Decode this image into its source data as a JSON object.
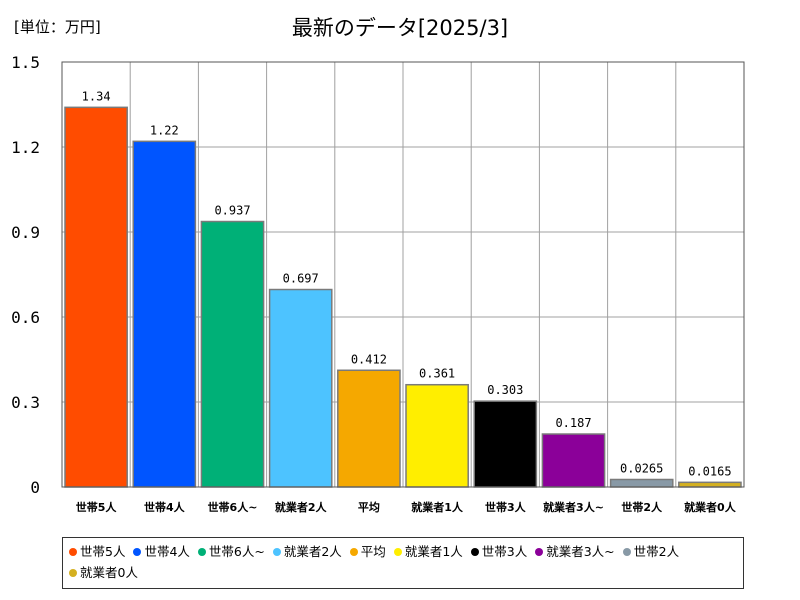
{
  "unit_label": "[単位：万円]",
  "chart_data": {
    "type": "bar",
    "title": "最新のデータ[2025/3]",
    "unit": "[単位：万円]",
    "categories": [
      "世帯5人",
      "世帯4人",
      "世帯6人~",
      "就業者2人",
      "平均",
      "就業者1人",
      "世帯3人",
      "就業者3人~",
      "世帯2人",
      "就業者0人"
    ],
    "values": [
      1.34,
      1.22,
      0.937,
      0.697,
      0.412,
      0.361,
      0.303,
      0.187,
      0.0265,
      0.0165
    ],
    "value_labels": [
      "1.34",
      "1.22",
      "0.937",
      "0.697",
      "0.412",
      "0.361",
      "0.303",
      "0.187",
      "0.0265",
      "0.0165"
    ],
    "colors": [
      "#ff4c00",
      "#0055ff",
      "#00b077",
      "#4dc3ff",
      "#f5a800",
      "#ffee00",
      "#000000",
      "#8b0099",
      "#8899a6",
      "#d4b020"
    ],
    "ylim": [
      0,
      1.5
    ],
    "yticks": [
      0,
      0.3,
      0.6,
      0.9,
      1.2,
      1.5
    ],
    "ytick_labels": [
      "0",
      "0.3",
      "0.6",
      "0.9",
      "1.2",
      "1.5"
    ],
    "grid": true,
    "legend_position": "bottom"
  }
}
